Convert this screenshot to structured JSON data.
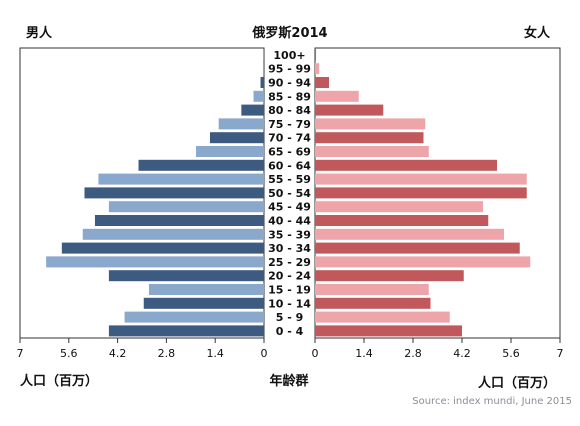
{
  "chart_data": {
    "type": "bar",
    "title": "俄罗斯2014",
    "left_label": "男人",
    "right_label": "女人",
    "xlabel_left": "人口（百万）",
    "xlabel_center": "年龄群",
    "xlabel_right": "人口（百万）",
    "source": "Source: index mundi, June 2015",
    "xlim": [
      0,
      7
    ],
    "xticks_left": [
      "7",
      "5.6",
      "4.2",
      "2.8",
      "1.4",
      "0"
    ],
    "xticks_right": [
      "0",
      "1.4",
      "2.8",
      "4.2",
      "5.6",
      "7"
    ],
    "categories": [
      "100+",
      "95 - 99",
      "90 - 94",
      "85 - 89",
      "80 - 84",
      "75 - 79",
      "70 - 74",
      "65 - 69",
      "60 - 64",
      "55 - 59",
      "50 - 54",
      "45 - 49",
      "40 - 44",
      "35 - 39",
      "30 - 34",
      "25 - 29",
      "20 - 24",
      "15 - 19",
      "10 - 14",
      "5 - 9",
      "0 - 4"
    ],
    "series": [
      {
        "name": "男人",
        "values": [
          0.01,
          0.03,
          0.1,
          0.3,
          0.65,
          1.3,
          1.55,
          1.95,
          3.6,
          4.75,
          5.15,
          4.45,
          4.85,
          5.2,
          5.8,
          6.25,
          4.45,
          3.3,
          3.45,
          4.0,
          4.45
        ]
      },
      {
        "name": "女人",
        "values": [
          0.03,
          0.12,
          0.4,
          1.25,
          1.95,
          3.15,
          3.1,
          3.25,
          5.2,
          6.05,
          6.05,
          4.8,
          4.95,
          5.4,
          5.85,
          6.15,
          4.25,
          3.25,
          3.3,
          3.85,
          4.2
        ]
      }
    ],
    "colors": {
      "male_dark": "#3d5a80",
      "male_light": "#8aa7cc",
      "female_dark": "#c0585c",
      "female_light": "#eda5a9"
    }
  }
}
